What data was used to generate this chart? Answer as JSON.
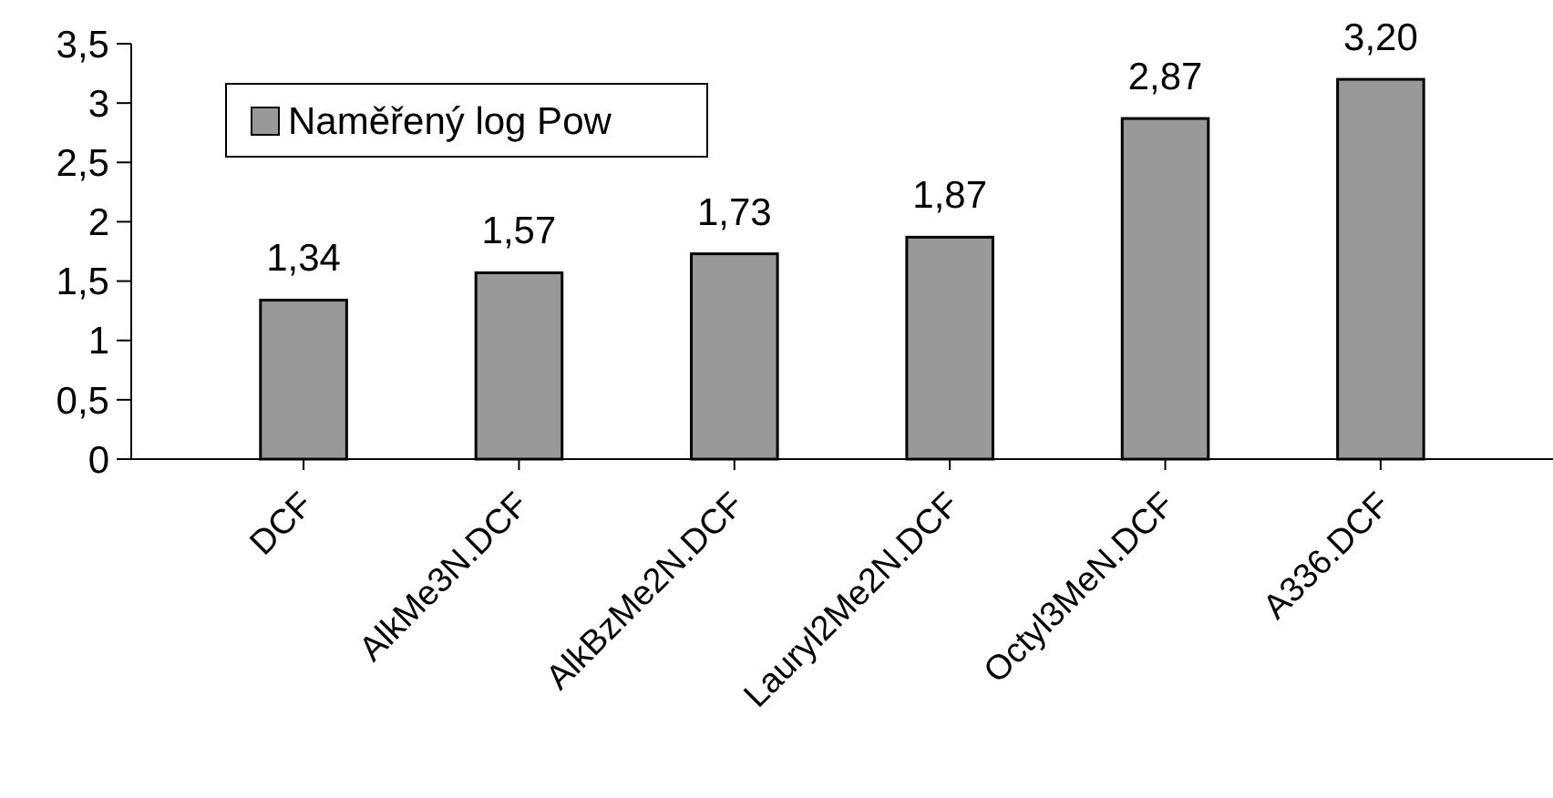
{
  "chart_data": {
    "type": "bar",
    "categories": [
      "DCF",
      "AlkMe3N.DCF",
      "AlkBzMe2N.DCF",
      "Lauryl2Me2N.DCF",
      "Octyl3MeN.DCF",
      "A336.DCF"
    ],
    "series": [
      {
        "name": "Naměřený log Pow",
        "color": "#999999",
        "values": [
          1.34,
          1.57,
          1.73,
          1.87,
          2.87,
          3.2
        ],
        "value_labels": [
          "1,34",
          "1,57",
          "1,73",
          "1,87",
          "2,87",
          "3,20"
        ]
      }
    ],
    "ylim": [
      0,
      3.5
    ],
    "yticks": [
      0,
      {
        "value": 0.5,
        "label": "0,5"
      },
      1,
      {
        "value": 1.5,
        "label": "1,5"
      },
      2,
      {
        "value": 2.5,
        "label": "2,5"
      },
      3,
      {
        "value": 3.5,
        "label": "3,5"
      }
    ],
    "grid": false,
    "legend": "top left"
  }
}
